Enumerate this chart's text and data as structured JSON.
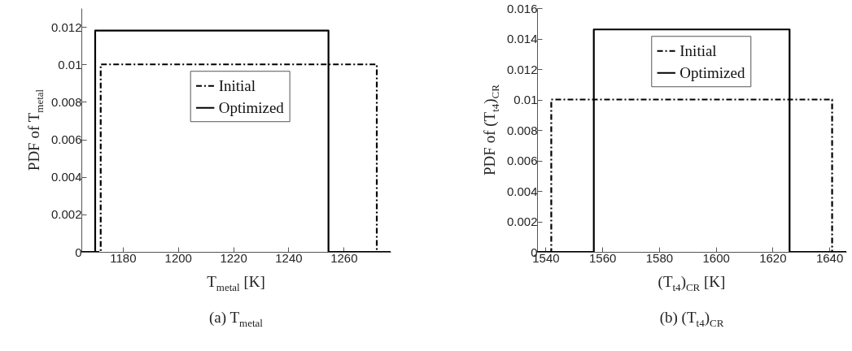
{
  "chart_data": [
    {
      "type": "line",
      "title": "(a) T$_{metal}$",
      "xlabel": "T$_{metal}$ [K]",
      "ylabel": "PDF of T$_{metal}$",
      "xlim": [
        1165,
        1277
      ],
      "xticks": [
        1180,
        1200,
        1220,
        1240,
        1260
      ],
      "ylim": [
        0,
        0.013
      ],
      "yticks": [
        0,
        0.002,
        0.004,
        0.006,
        0.008,
        0.01,
        0.012
      ],
      "legend": "top right",
      "series": [
        {
          "name": "Initial",
          "color": "#000000",
          "line_style": "dashed",
          "x": [
            1165,
            1172,
            1172,
            1272,
            1272,
            1277
          ],
          "values": [
            0,
            0,
            0.01,
            0.01,
            0,
            0
          ]
        },
        {
          "name": "Optimized",
          "color": "#000000",
          "line_style": "solid",
          "x": [
            1165,
            1170,
            1170,
            1254.5,
            1254.5,
            1277
          ],
          "values": [
            0,
            0,
            0.0118,
            0.0118,
            0,
            0
          ]
        }
      ]
    },
    {
      "type": "line",
      "title": "(b) (T$_{t4}$)$_{CR}$",
      "xlabel": "(T$_{t4}$)$_{CR}$ [K]",
      "ylabel": "PDF of (T$_{t4}$)$_{CR}$",
      "xlim": [
        1537,
        1646
      ],
      "xticks": [
        1540,
        1560,
        1580,
        1600,
        1620,
        1640
      ],
      "ylim": [
        0,
        0.016
      ],
      "yticks": [
        0,
        0.002,
        0.004,
        0.006,
        0.008,
        0.01,
        0.012,
        0.014,
        0.016
      ],
      "legend": "top right",
      "series": [
        {
          "name": "Initial",
          "color": "#000000",
          "line_style": "dashed",
          "x": [
            1537,
            1542,
            1542,
            1641,
            1641,
            1646
          ],
          "values": [
            0,
            0,
            0.01,
            0.01,
            0,
            0
          ]
        },
        {
          "name": "Optimized",
          "color": "#000000",
          "line_style": "solid",
          "x": [
            1537,
            1557,
            1557,
            1626,
            1626,
            1646
          ],
          "values": [
            0,
            0,
            0.0146,
            0.0146,
            0,
            0
          ]
        }
      ]
    }
  ]
}
